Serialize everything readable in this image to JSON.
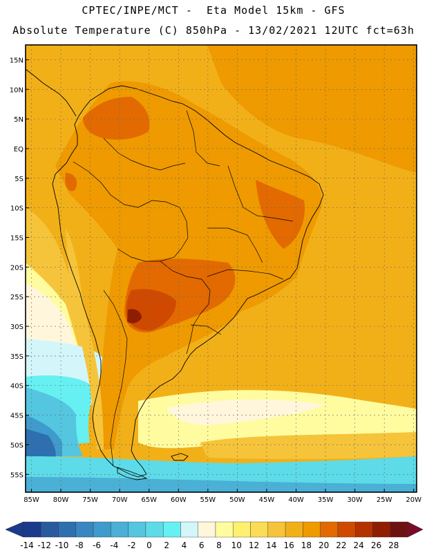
{
  "header": {
    "line1": "CPTEC/INPE/MCT -  Eta Model 15km - GFS",
    "line2": "Absolute Temperature (C) 850hPa - 13/02/2021 12UTC fct=63h"
  },
  "map": {
    "lat_labels": [
      "15N",
      "10N",
      "5N",
      "EQ",
      "5S",
      "10S",
      "15S",
      "20S",
      "25S",
      "30S",
      "35S",
      "40S",
      "45S",
      "50S",
      "55S"
    ],
    "lat_values": [
      15,
      10,
      5,
      0,
      -5,
      -10,
      -15,
      -20,
      -25,
      -30,
      -35,
      -40,
      -45,
      -50,
      -55
    ],
    "lon_labels": [
      "85W",
      "80W",
      "75W",
      "70W",
      "65W",
      "60W",
      "55W",
      "50W",
      "45W",
      "40W",
      "35W",
      "30W",
      "25W",
      "20W"
    ],
    "lon_values": [
      -85,
      -80,
      -75,
      -70,
      -65,
      -60,
      -55,
      -50,
      -45,
      -40,
      -35,
      -30,
      -25,
      -20
    ],
    "lat_range": [
      -58,
      17.5
    ],
    "lon_range": [
      -86,
      -19.5
    ]
  },
  "colorbar": {
    "labels": [
      "-14",
      "-12",
      "-10",
      "-8",
      "-6",
      "-4",
      "-2",
      "0",
      "2",
      "4",
      "6",
      "8",
      "10",
      "12",
      "14",
      "16",
      "18",
      "20",
      "22",
      "24",
      "26",
      "28"
    ],
    "colors": [
      "#1a3a8c",
      "#2a5a9e",
      "#2e6fb0",
      "#3a86c0",
      "#3f9bcc",
      "#4ab0d6",
      "#54c6e0",
      "#5ddbe8",
      "#66f0f2",
      "#d2f6fa",
      "#fff6dc",
      "#fffca0",
      "#fff070",
      "#fbdc55",
      "#f6c43a",
      "#f2b018",
      "#ee9a00",
      "#e26a00",
      "#cf4a00",
      "#b53200",
      "#8f1e00",
      "#6f1010"
    ],
    "arrow_left_color": "#1a3a8c",
    "arrow_right_color": "#7a0a28"
  }
}
